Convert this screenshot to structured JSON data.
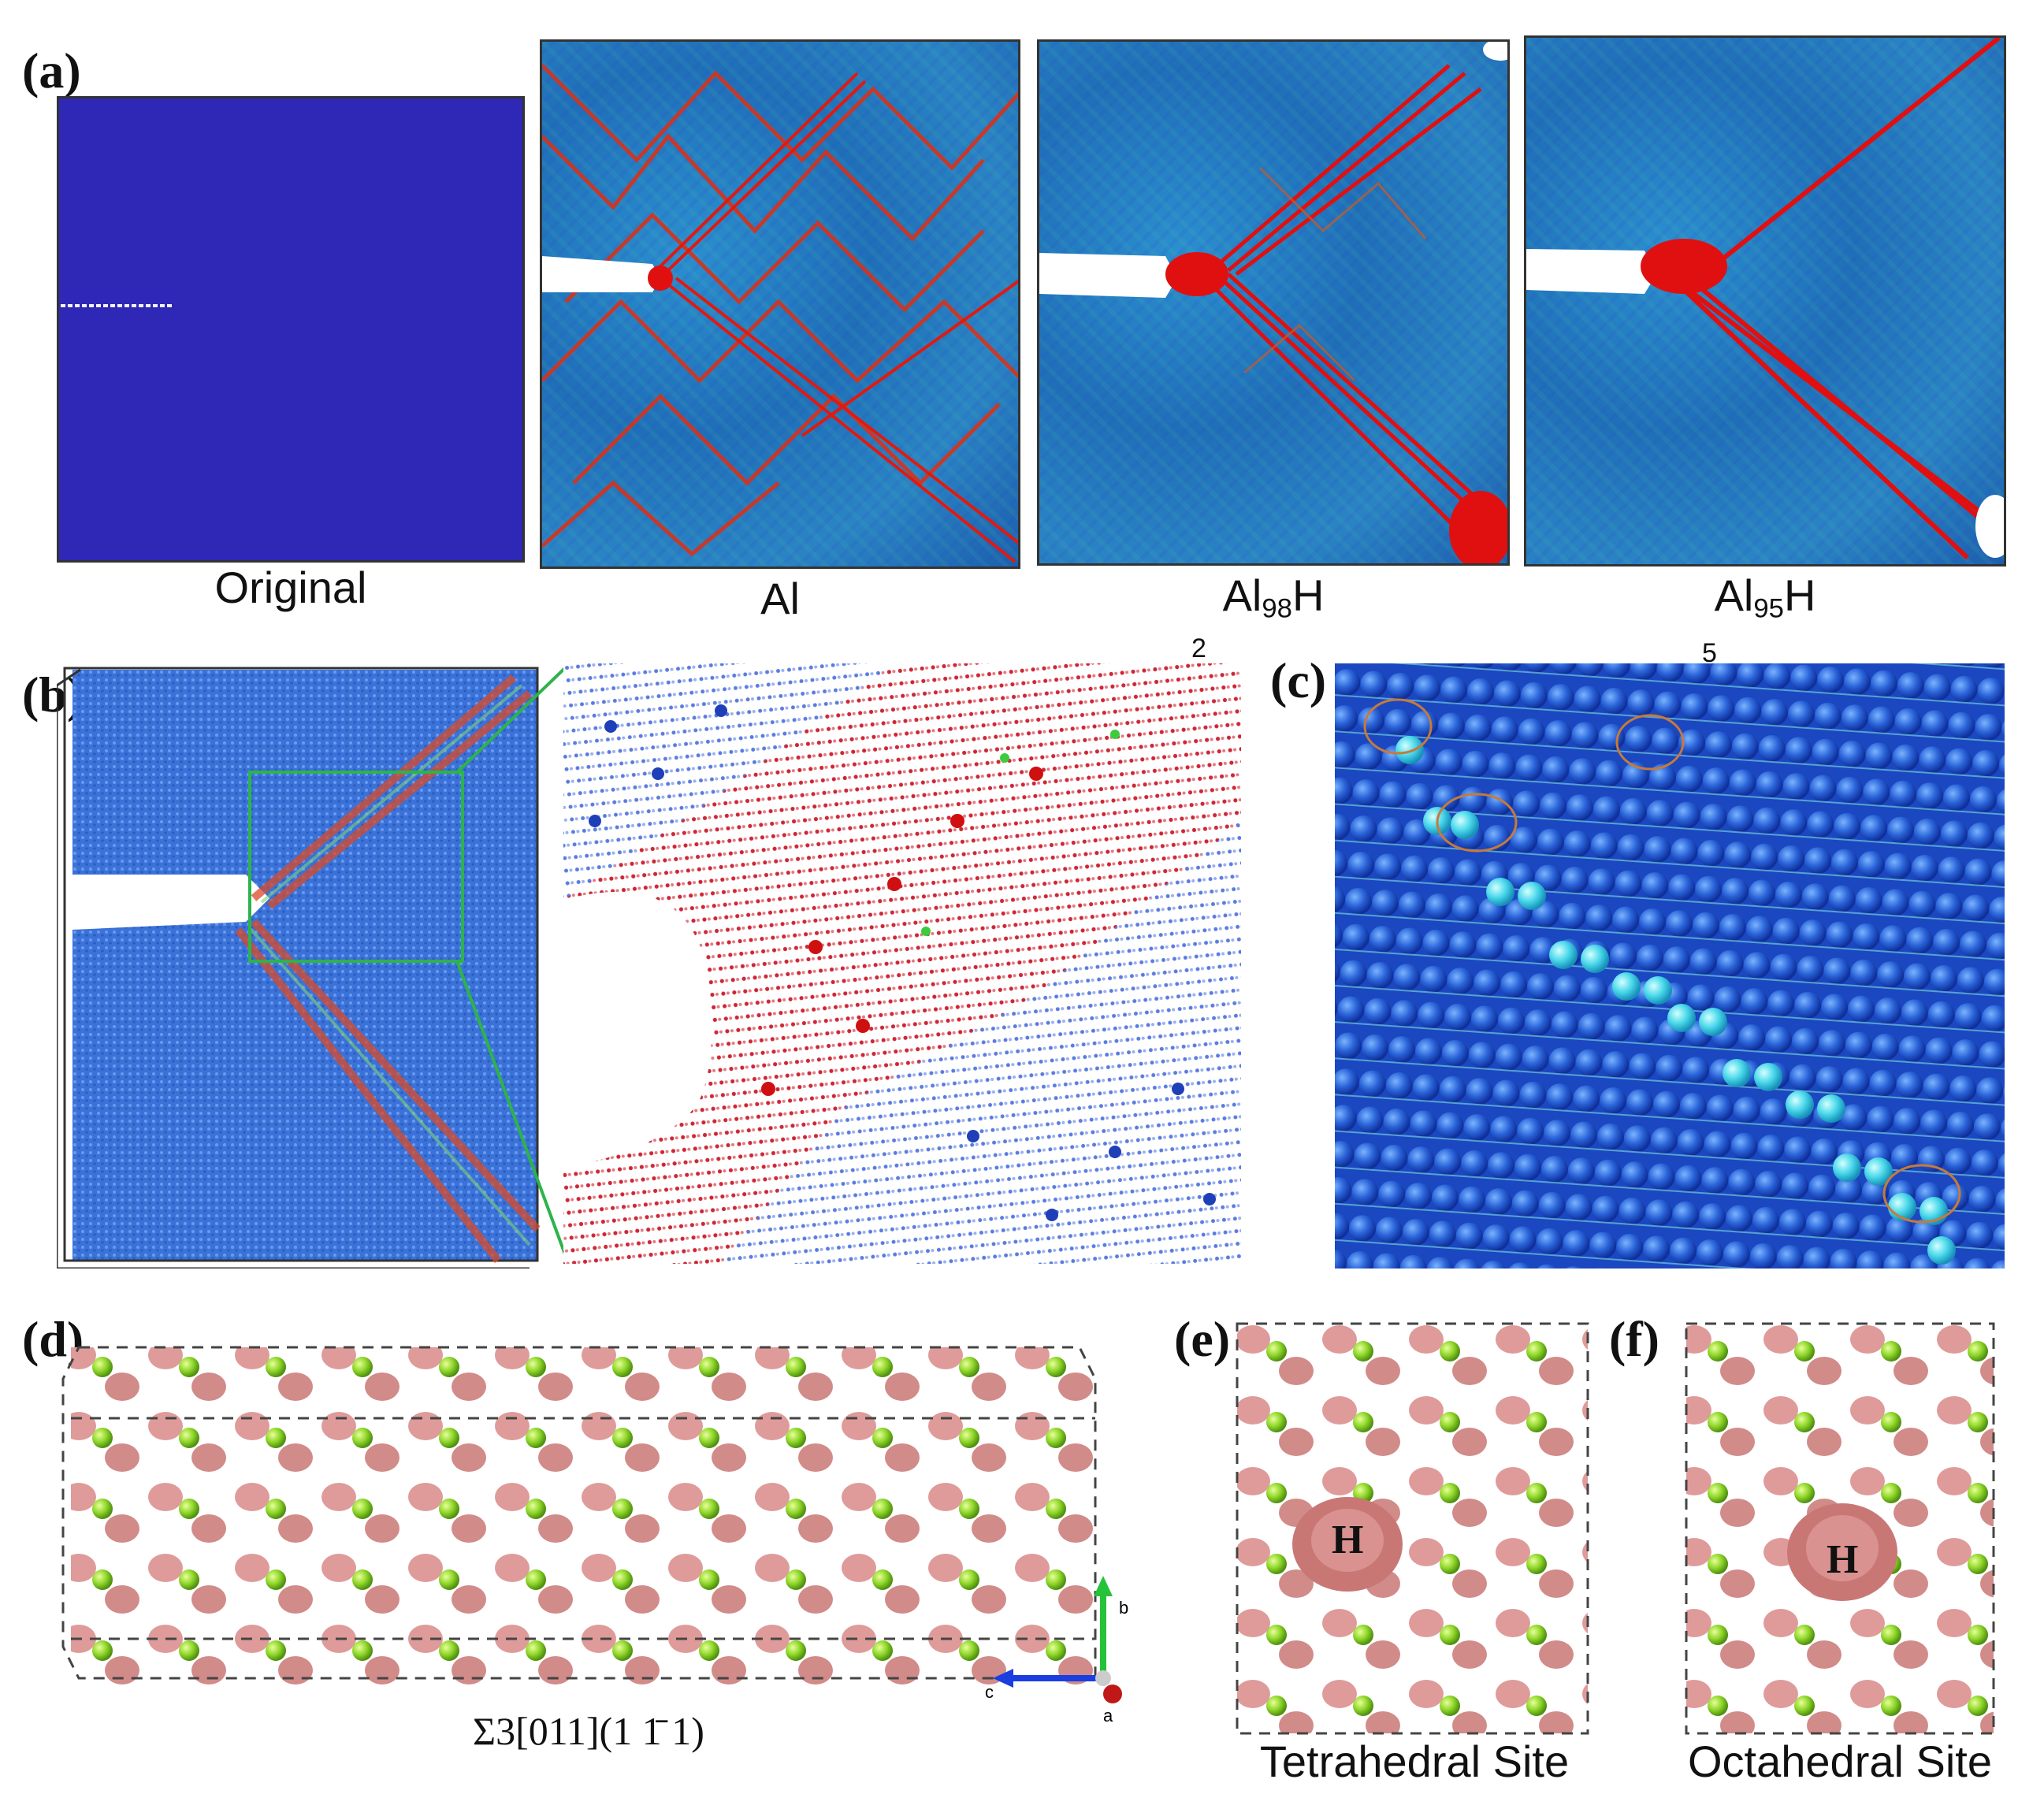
{
  "panel_labels": {
    "a": "(a)",
    "b": "(b)",
    "c": "(c)",
    "d": "(d)",
    "e": "(e)",
    "f": "(f)"
  },
  "row_a": {
    "captions": {
      "original": "Original",
      "al": "Al",
      "al98h_base": "Al",
      "al98h_sub": "98",
      "al98h_tail": "H",
      "al95h_base": "Al",
      "al95h_sub": "95",
      "al95h_tail": "H"
    }
  },
  "row_b": {
    "stray_mark_left": "2",
    "stray_mark_right": "5"
  },
  "row_d": {
    "caption": "Σ3[011](1 1̄ 1)",
    "axis_labels": {
      "b": "b",
      "c": "c",
      "a": "a"
    }
  },
  "row_ef": {
    "atom_label_e": "H",
    "atom_label_f": "H",
    "caption_e": "Tetrahedral Site",
    "caption_f": "Octahedral Site"
  },
  "colors": {
    "atom_blue": "#2a3fc4",
    "dislocation_red": "#e01010",
    "al_green": "#8fd62a",
    "charge_pink": "#d98a88"
  }
}
